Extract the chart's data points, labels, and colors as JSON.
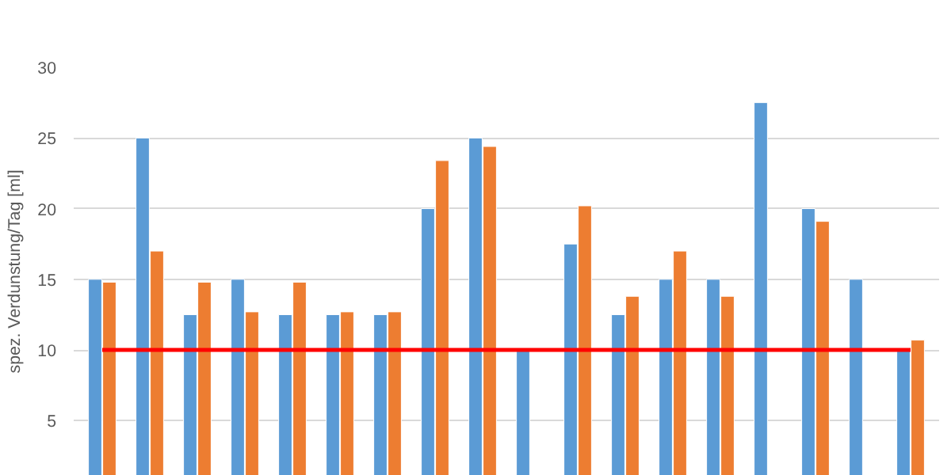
{
  "chart_data": {
    "type": "bar",
    "ylabel": "spez. Verdunstung/Tag [ml]",
    "categories": [
      null,
      null,
      null,
      null,
      null,
      null,
      null,
      null,
      null,
      null,
      null,
      null,
      null,
      null,
      null,
      null,
      null,
      null
    ],
    "series": [
      {
        "color": "#5b9bd5",
        "values": [
          15,
          25,
          12.5,
          15,
          12.5,
          12.5,
          12.5,
          20,
          25,
          10,
          17.5,
          12.5,
          15,
          15,
          27.5,
          20,
          15,
          10
        ]
      },
      {
        "color": "#ed7d31",
        "values": [
          14.8,
          17,
          14.8,
          12.7,
          14.8,
          12.7,
          12.7,
          23.4,
          24.4,
          null,
          20.2,
          13.8,
          17,
          13.8,
          null,
          19.1,
          null,
          10.7
        ]
      },
      {
        "type": "line",
        "color": "#ff0000",
        "values": [
          10,
          10,
          10,
          10,
          10,
          10,
          10,
          10,
          10,
          10,
          10,
          10,
          10,
          10,
          10,
          10,
          10,
          10
        ]
      }
    ],
    "ylim": [
      1.1,
      30
    ],
    "yticks": [
      5,
      10,
      15,
      20,
      25,
      30
    ],
    "grid": "y",
    "tick_labels": "y"
  }
}
